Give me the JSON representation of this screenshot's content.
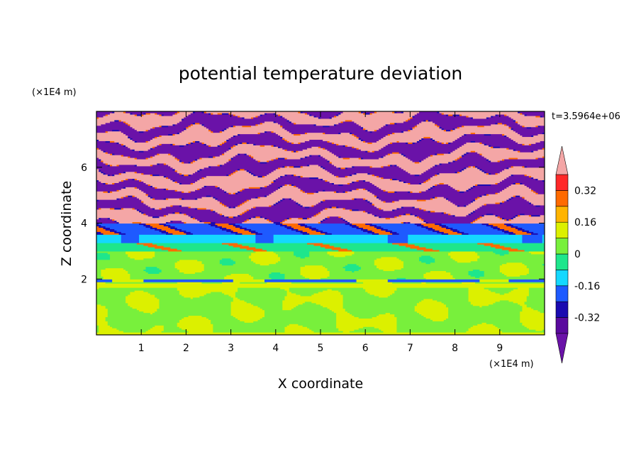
{
  "chart_data": {
    "type": "heatmap",
    "title": "potential temperature deviation",
    "xlabel": "X coordinate",
    "ylabel": "Z coordinate",
    "x_unit": "(×1E4 m)",
    "y_unit": "(×1E4 m)",
    "xlim": [
      0,
      10
    ],
    "ylim": [
      0,
      8
    ],
    "x_ticks": [
      1,
      2,
      3,
      4,
      5,
      6,
      7,
      8,
      9
    ],
    "y_ticks": [
      2,
      4,
      6
    ],
    "time_label": "t=3.5964e+06",
    "colorbar": {
      "levels": [
        -0.4,
        -0.32,
        -0.24,
        -0.16,
        -0.08,
        0,
        0.08,
        0.16,
        0.24,
        0.32,
        0.4
      ],
      "colors": [
        "#5a0a9e",
        "#1a0ab0",
        "#1e5aff",
        "#14d8ff",
        "#1ee68c",
        "#78f03c",
        "#dcf000",
        "#ffb400",
        "#ff6a00",
        "#ff2828"
      ],
      "under_color": "#6a12a8",
      "over_color": "#f4a6a6",
      "labels": [
        "-0.32",
        "-0.16",
        "0",
        "0.16",
        "0.32"
      ],
      "label_values": [
        -0.32,
        -0.16,
        0,
        0.16,
        0.32
      ]
    },
    "bands": [
      {
        "z0": 0,
        "z1": 1.9,
        "value": 0.0,
        "desc": "green turbulent mixed layer"
      },
      {
        "z0": 1.9,
        "z1": 2.0,
        "value": -0.2
      },
      {
        "z0": 2.0,
        "z1": 3.0,
        "value": 0.07
      },
      {
        "z0": 3.0,
        "z1": 3.3,
        "value": -0.05
      },
      {
        "z0": 3.3,
        "z1": 3.6,
        "value": -0.15
      },
      {
        "z0": 3.6,
        "z1": 4.0,
        "value": -0.25
      },
      {
        "z0": 4.0,
        "z1": 8.0,
        "value": "alternating",
        "desc": "alternating purple (< -0.4) and pink (> 0.4) layers"
      }
    ]
  }
}
